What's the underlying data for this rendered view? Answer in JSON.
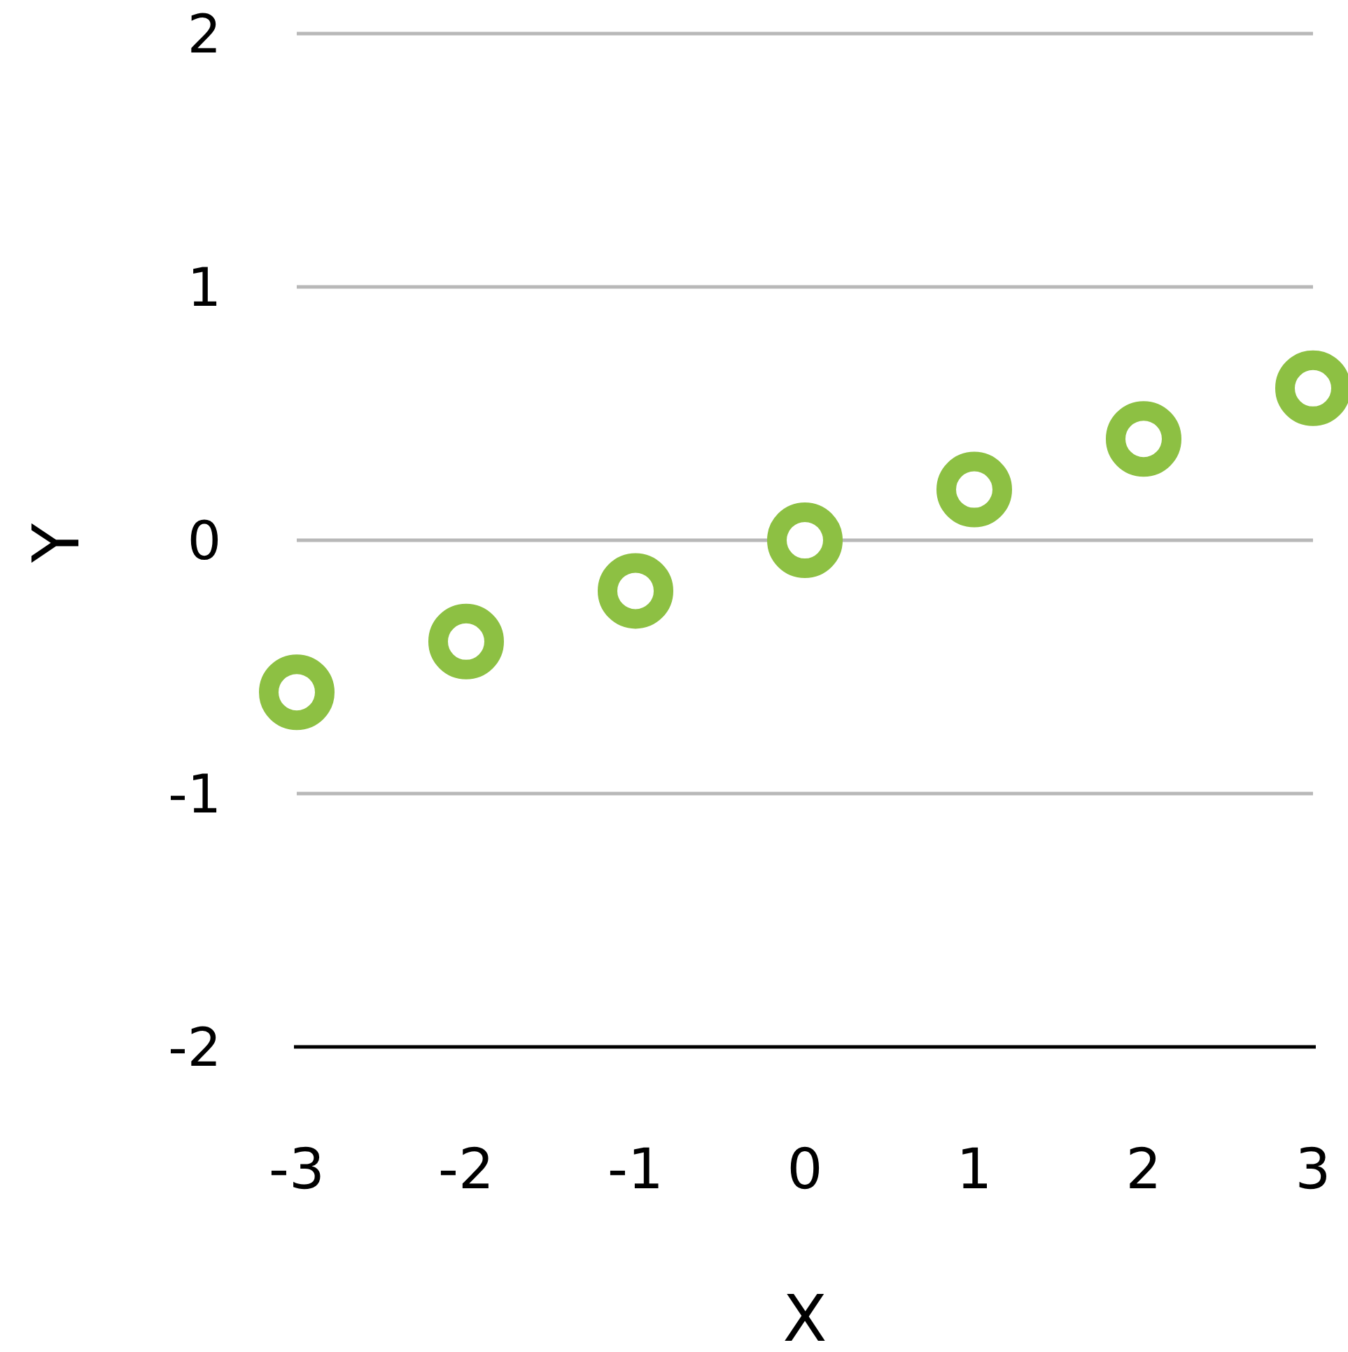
{
  "chart_data": {
    "type": "scatter",
    "xlabel": "X",
    "ylabel": "Y",
    "x": [
      -3,
      -2,
      -1,
      0,
      1,
      2,
      3
    ],
    "series": [
      {
        "color": "#8dc043",
        "values": [
          -0.6,
          -0.4,
          -0.2,
          0,
          0.2,
          0.4,
          0.6
        ]
      }
    ],
    "xlim": [
      -3,
      3
    ],
    "ylim": [
      -2,
      2
    ],
    "xticks": [
      -3,
      -2,
      -1,
      0,
      1,
      2,
      3
    ],
    "yticks": [
      -2,
      -1,
      0,
      1,
      2
    ],
    "grid": "y",
    "marker": "circle"
  }
}
